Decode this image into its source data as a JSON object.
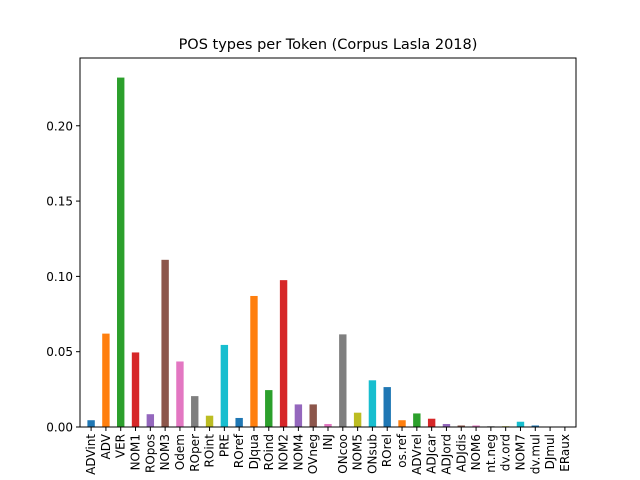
{
  "chart_data": {
    "type": "bar",
    "title": "POS types per Token (Corpus Lasla 2018)",
    "xlabel": "",
    "ylabel": "",
    "ylim": [
      0,
      0.245
    ],
    "yticks": [
      0.0,
      0.05,
      0.1,
      0.15,
      0.2
    ],
    "ytick_labels": [
      "0.00",
      "0.05",
      "0.10",
      "0.15",
      "0.20"
    ],
    "grid": false,
    "legend": "none",
    "colors": [
      "#1f77b4",
      "#ff7f0e",
      "#2ca02c",
      "#d62728",
      "#9467bd",
      "#8c564b",
      "#e377c2",
      "#7f7f7f",
      "#bcbd22",
      "#17becf"
    ],
    "categories": [
      "ADVint",
      "ADV",
      "VER",
      "NOM1",
      "PROpos",
      "NOM3",
      "PROdem",
      "PROper",
      "PROint",
      "PRE",
      "PROref",
      "ADJqua",
      "PROind",
      "NOM2",
      "NOM4",
      "ADVneg",
      "INJ",
      "CONcoo",
      "NOM5",
      "CONsub",
      "PROrel",
      "pos.ref",
      "ADVrel",
      "ADJcar",
      "ADJord",
      "ADJdis",
      "NOM6",
      "int.neg",
      "adv.ord",
      "NOM7",
      "adv.mul",
      "ADJmul",
      "VERaux"
    ],
    "tick_labels_visible": [
      "ADVint",
      "ADV",
      "VER",
      "NOM1",
      "ROpos",
      "NOM3",
      "Odem",
      "ROper",
      "ROint",
      "PRE",
      "ROref",
      "DJqua",
      "ROind",
      "NOM2",
      "NOM4",
      "OVneg",
      "INJ",
      "ONcoo",
      "NOM5",
      "ONsub",
      "ROrel",
      "os.ref",
      "ADVrel",
      "ADJcar",
      "ADJord",
      "ADJdis",
      "NOM6",
      "nt.neg",
      "dv.ord",
      "NOM7",
      "dv.mul",
      "DJmul",
      "ERaux"
    ],
    "values": [
      0.0045,
      0.062,
      0.232,
      0.0495,
      0.0085,
      0.111,
      0.0435,
      0.0205,
      0.0075,
      0.0545,
      0.006,
      0.087,
      0.0245,
      0.0975,
      0.015,
      0.015,
      0.002,
      0.0615,
      0.0095,
      0.031,
      0.0265,
      0.0045,
      0.009,
      0.0055,
      0.002,
      0.001,
      0.001,
      0.0005,
      0.0005,
      0.0035,
      0.001,
      0.0003,
      0.0002
    ]
  }
}
